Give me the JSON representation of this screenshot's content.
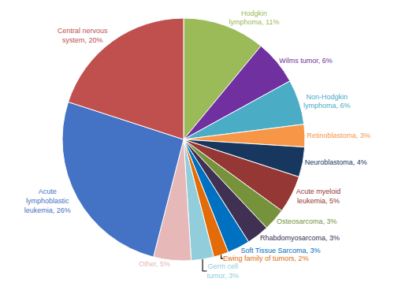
{
  "chart_data": {
    "type": "pie",
    "categories": [
      "Hodgkin\nlymphoma, 11%",
      "Wilms tumor, 6%",
      "Non-Hodgkin\nlymphoma, 6%",
      "Retinoblastoma, 3%",
      "Neuroblastoma, 4%",
      "Acute myeloid\nleukemia, 5%",
      "Osteosarcoma, 3%",
      "Rhabdomyosarcoma, 3%",
      "Soft Tissue Sarcoma, 3%",
      "Ewing family of tumors, 2%",
      "Germ cell\ntumor, 3%",
      "Other, 5%",
      "Acute\nlymphoblastic\nleukemia, 26%",
      "Central nervous\nsystem, 20%"
    ],
    "values": [
      11,
      6,
      6,
      3,
      4,
      5,
      3,
      3,
      3,
      2,
      3,
      5,
      26,
      20
    ],
    "colors": [
      "#9BBB59",
      "#7030A0",
      "#4BACC6",
      "#F79646",
      "#17375E",
      "#953735",
      "#76933C",
      "#403152",
      "#0070C0",
      "#E36C09",
      "#92CDDC",
      "#E6B8B7",
      "#4472C4",
      "#C0504D"
    ]
  }
}
